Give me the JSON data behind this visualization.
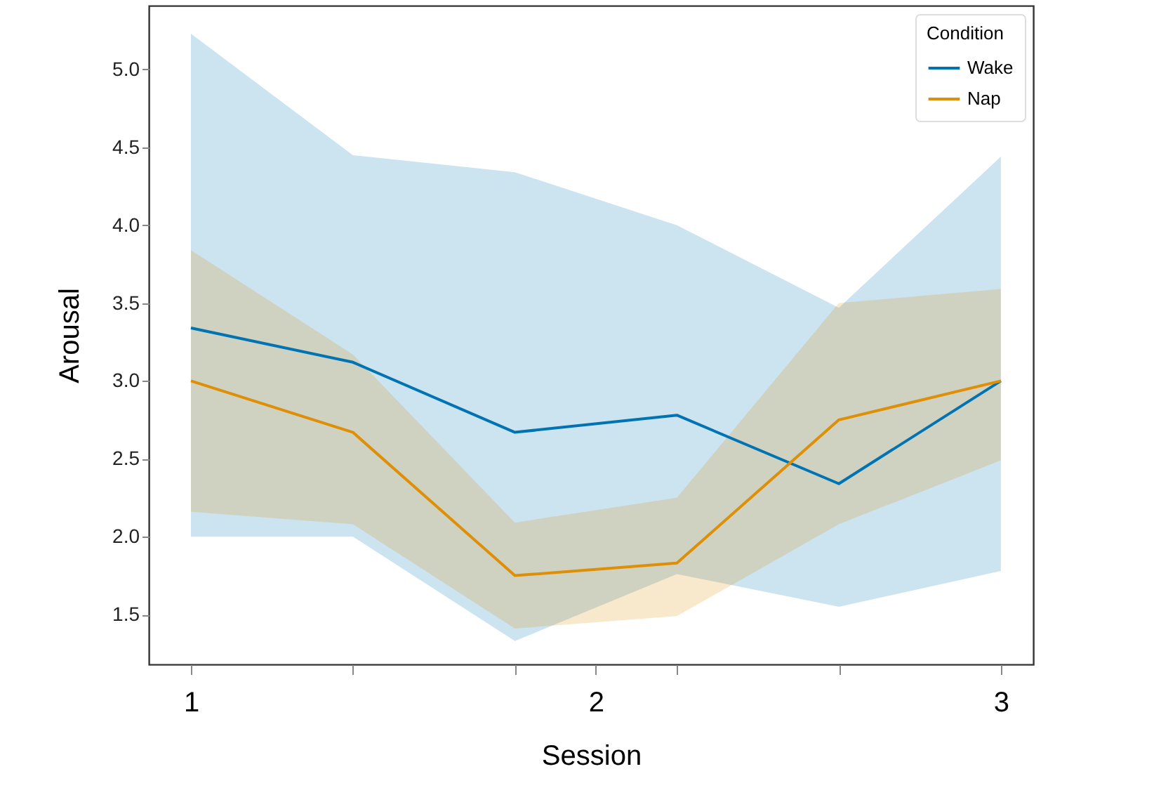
{
  "chart_data": {
    "type": "line",
    "xlabel": "Session",
    "ylabel": "Arousal",
    "legend_title": "Condition",
    "legend": "top right",
    "grid": false,
    "x": [
      1,
      1.4,
      1.8,
      2.2,
      2.6,
      3
    ],
    "xlim": [
      0.896,
      3.08
    ],
    "xticks": [
      1,
      {
        "value": 1.4,
        "label": null
      },
      {
        "value": 1.8,
        "label": null
      },
      2,
      {
        "value": 2.2,
        "label": null
      },
      {
        "value": 2.6,
        "label": null
      },
      3
    ],
    "ylim": [
      1.18,
      5.41
    ],
    "yticks": [
      1.5,
      {
        "value": 2,
        "label": "2.0"
      },
      2.5,
      {
        "value": 3,
        "label": "3.0"
      },
      3.5,
      {
        "value": 4,
        "label": "4.0"
      },
      4.5,
      {
        "value": 5,
        "label": "5.0"
      }
    ],
    "series": [
      {
        "name": "Wake",
        "color": "#0173b2",
        "values": [
          3.34,
          3.12,
          2.67,
          2.78,
          2.34,
          3.0
        ],
        "lower": [
          2.0,
          2.0,
          1.33,
          1.76,
          1.55,
          1.78
        ],
        "upper": [
          5.23,
          4.45,
          4.34,
          4.0,
          3.47,
          4.44
        ]
      },
      {
        "name": "Nap",
        "color": "#de8f05",
        "values": [
          3.0,
          2.67,
          1.75,
          1.83,
          2.75,
          3.0
        ],
        "lower": [
          2.16,
          2.08,
          1.41,
          1.49,
          2.08,
          2.49
        ],
        "upper": [
          3.84,
          3.17,
          2.09,
          2.25,
          3.5,
          3.59
        ]
      }
    ]
  }
}
